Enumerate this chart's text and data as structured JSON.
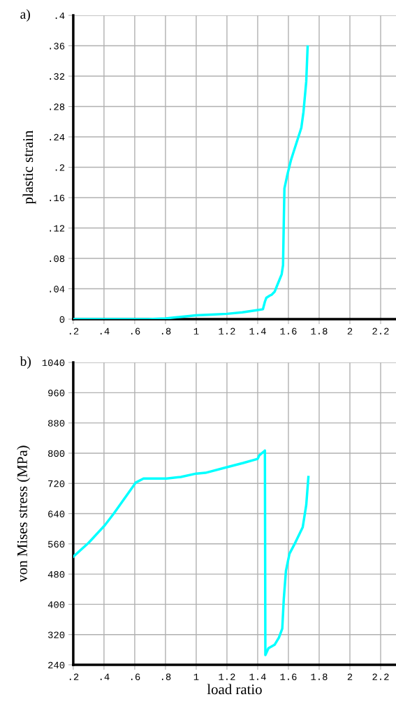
{
  "chart_data": [
    {
      "type": "line",
      "annotations": [
        "a)"
      ],
      "ylabel": "plastic strain",
      "grid": true,
      "marker": "none",
      "line_style": "solid",
      "xlim": [
        0.2,
        2.3
      ],
      "xticks": [
        {
          "value": 0.2,
          "label": ".2"
        },
        {
          "value": 0.4,
          "label": ".4"
        },
        {
          "value": 0.6,
          "label": ".6"
        },
        {
          "value": 0.8,
          "label": ".8"
        },
        1,
        1.2,
        1.4,
        1.6,
        1.8,
        2,
        2.2
      ],
      "ylim": [
        0,
        0.4
      ],
      "yticks": [
        0,
        {
          "value": 0.04,
          "label": ".04"
        },
        {
          "value": 0.08,
          "label": ".08"
        },
        {
          "value": 0.12,
          "label": ".12"
        },
        {
          "value": 0.16,
          "label": ".16"
        },
        {
          "value": 0.2,
          "label": ".2"
        },
        {
          "value": 0.24,
          "label": ".24"
        },
        {
          "value": 0.28,
          "label": ".28"
        },
        {
          "value": 0.32,
          "label": ".32"
        },
        {
          "value": 0.36,
          "label": ".36"
        },
        {
          "value": 0.4,
          "label": ".4"
        }
      ],
      "series": [
        {
          "color": "#00ffff",
          "x": [
            0.2,
            0.5,
            0.69,
            0.8,
            0.9,
            1.0,
            1.1,
            1.2,
            1.3,
            1.4,
            1.434,
            1.447,
            1.456,
            1.479,
            1.49,
            1.51,
            1.524,
            1.556,
            1.565,
            1.57,
            1.574,
            1.593,
            1.616,
            1.63,
            1.684,
            1.698,
            1.716,
            1.725
          ],
          "values": [
            0,
            0,
            0,
            0.001,
            0.003,
            0.005,
            0.006,
            0.007,
            0.009,
            0.012,
            0.013,
            0.023,
            0.028,
            0.031,
            0.032,
            0.036,
            0.043,
            0.059,
            0.071,
            0.129,
            0.172,
            0.19,
            0.209,
            0.218,
            0.252,
            0.273,
            0.313,
            0.359
          ]
        }
      ]
    },
    {
      "type": "line",
      "annotations": [
        "b)"
      ],
      "xlabel": "load ratio",
      "ylabel": "von Mises stress (MPa)",
      "grid": true,
      "marker": "none",
      "line_style": "solid",
      "xlim": [
        0.2,
        2.3
      ],
      "xticks": [
        {
          "value": 0.2,
          "label": ".2"
        },
        {
          "value": 0.4,
          "label": ".4"
        },
        {
          "value": 0.6,
          "label": ".6"
        },
        {
          "value": 0.8,
          "label": ".8"
        },
        1,
        1.2,
        1.4,
        1.6,
        1.8,
        2,
        2.2
      ],
      "ylim": [
        240,
        1040
      ],
      "yticks": [
        240,
        320,
        400,
        480,
        560,
        640,
        720,
        800,
        880,
        960,
        1040
      ],
      "series": [
        {
          "color": "#00ffff",
          "x": [
            0.2,
            0.3,
            0.405,
            0.465,
            0.606,
            0.657,
            0.807,
            0.9,
            1.0,
            1.06,
            1.2,
            1.305,
            1.4,
            1.41,
            1.442,
            1.447,
            1.45,
            1.47,
            1.51,
            1.538,
            1.56,
            1.57,
            1.584,
            1.607,
            1.638,
            1.693,
            1.716,
            1.73
          ],
          "values": [
            526,
            563,
            609,
            641,
            722,
            733,
            733,
            737,
            746,
            748,
            763,
            774,
            785,
            794,
            805,
            807,
            266,
            284,
            293,
            312,
            336,
            415,
            489,
            534,
            558,
            604,
            663,
            737
          ]
        }
      ]
    }
  ]
}
